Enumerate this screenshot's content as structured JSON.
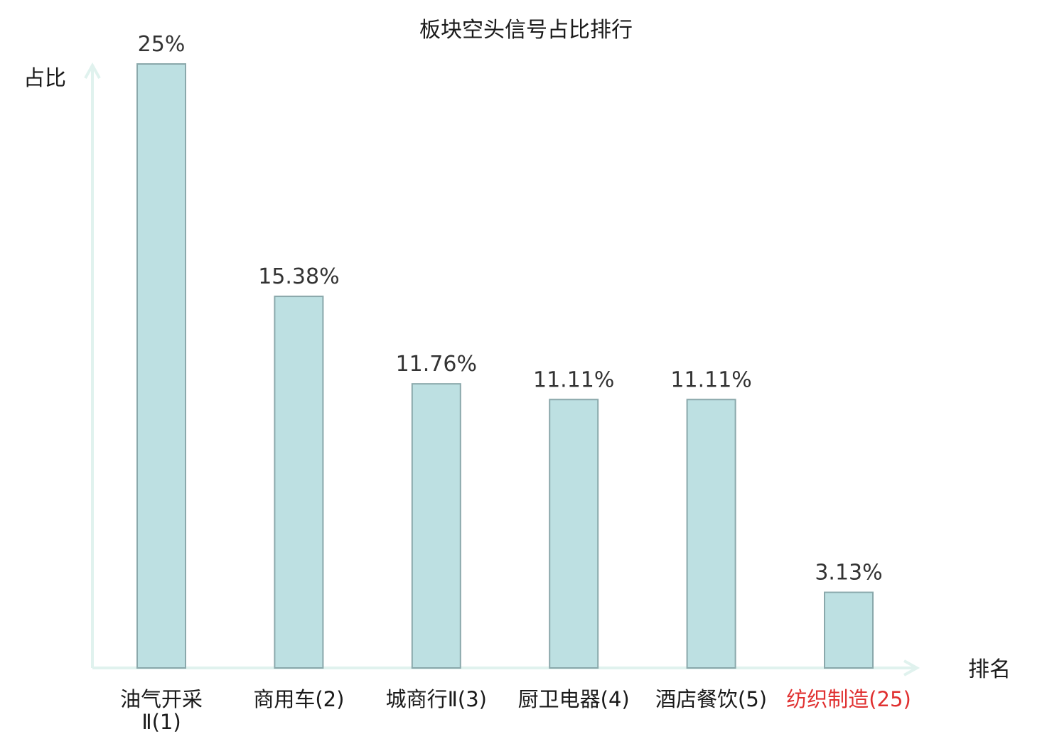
{
  "chart_data": {
    "type": "bar",
    "title": "板块空头信号占比排行",
    "ylabel": "占比",
    "xlabel": "排名",
    "ylim": [
      0,
      25
    ],
    "grid": false,
    "categories": [
      "油气开采Ⅱ(1)",
      "商用车(2)",
      "城商行Ⅱ(3)",
      "厨卫电器(4)",
      "酒店餐饮(5)",
      "纺织制造(25)"
    ],
    "category_lines": [
      [
        "油气开采",
        "Ⅱ(1)"
      ],
      [
        "商用车(2)"
      ],
      [
        "城商行Ⅱ(3)"
      ],
      [
        "厨卫电器(4)"
      ],
      [
        "酒店餐饮(5)"
      ],
      [
        "纺织制造(25)"
      ]
    ],
    "values": [
      25,
      15.38,
      11.76,
      11.11,
      11.11,
      3.13
    ],
    "value_labels": [
      "25%",
      "15.38%",
      "11.76%",
      "11.11%",
      "11.11%",
      "3.13%"
    ],
    "highlight_index": 5,
    "colors": {
      "bar_fill": "#bde0e2",
      "bar_stroke": "#8aa8ab",
      "axis": "#e0f2ee",
      "label_text": "#1a1a1a",
      "value_text": "#333333",
      "highlight_text": "#e03030"
    }
  }
}
